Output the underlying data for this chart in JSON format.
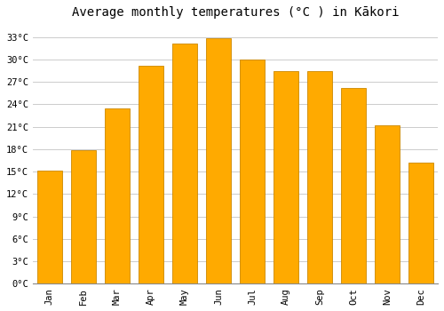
{
  "title": "Average monthly temperatures (°C ) in Kākori",
  "months": [
    "Jan",
    "Feb",
    "Mar",
    "Apr",
    "May",
    "Jun",
    "Jul",
    "Aug",
    "Sep",
    "Oct",
    "Nov",
    "Dec"
  ],
  "temperatures": [
    15.2,
    17.9,
    23.5,
    29.2,
    32.1,
    32.8,
    30.0,
    28.4,
    28.4,
    26.2,
    21.2,
    16.2
  ],
  "bar_color": "#FFAA00",
  "bar_edge_color": "#CC8800",
  "background_color": "#FFFFFF",
  "plot_bg_color": "#FFFFFF",
  "grid_color": "#CCCCCC",
  "ytick_labels": [
    "0°C",
    "3°C",
    "6°C",
    "9°C",
    "12°C",
    "15°C",
    "18°C",
    "21°C",
    "24°C",
    "27°C",
    "30°C",
    "33°C"
  ],
  "ytick_values": [
    0,
    3,
    6,
    9,
    12,
    15,
    18,
    21,
    24,
    27,
    30,
    33
  ],
  "ylim": [
    0,
    34.5
  ],
  "title_fontsize": 10,
  "tick_fontsize": 7.5,
  "bar_width": 0.75,
  "figsize": [
    5.0,
    3.5
  ],
  "dpi": 100
}
